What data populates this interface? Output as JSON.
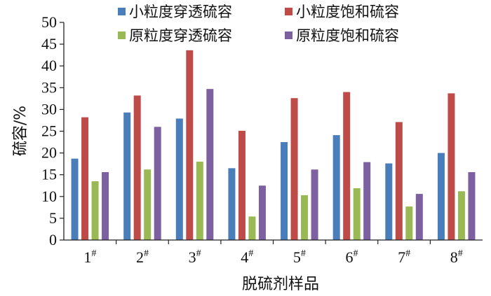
{
  "chart_data": {
    "type": "bar",
    "xlabel": "脱硫剂样品",
    "ylabel": "硫容/%",
    "ylim": [
      0,
      50
    ],
    "yticks": [
      0,
      5,
      10,
      15,
      20,
      25,
      30,
      35,
      40,
      45,
      50
    ],
    "grid": false,
    "legend_position": "top",
    "categories": [
      "1#",
      "2#",
      "3#",
      "4#",
      "5#",
      "6#",
      "7#",
      "8#"
    ],
    "series": [
      {
        "name": "小粒度穿透硫容",
        "color": "#4A7EBB",
        "values": [
          18.7,
          29.3,
          27.9,
          16.5,
          22.5,
          24.1,
          17.6,
          20.0
        ]
      },
      {
        "name": "小粒度饱和硫容",
        "color": "#BE4B48",
        "values": [
          28.2,
          33.2,
          43.6,
          25.1,
          32.6,
          34.0,
          27.1,
          33.7
        ]
      },
      {
        "name": "原粒度穿透硫容",
        "color": "#98B954",
        "values": [
          13.5,
          16.2,
          18.0,
          5.4,
          10.3,
          11.9,
          7.7,
          11.2
        ]
      },
      {
        "name": "原粒度饱和硫容",
        "color": "#7D60A0",
        "values": [
          15.6,
          26.0,
          34.7,
          12.5,
          16.2,
          17.9,
          10.6,
          15.6
        ]
      }
    ]
  }
}
